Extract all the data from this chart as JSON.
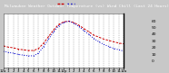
{
  "title": "Milwaukee Weather Outdoor Temperature (vs) Wind Chill (Last 24 Hours)",
  "title_fontsize": 3.2,
  "bg_color": "#c8c8c8",
  "plot_bg_color": "#ffffff",
  "title_bg_color": "#000000",
  "title_fg_color": "#ffffff",
  "hours": [
    0,
    1,
    2,
    3,
    4,
    5,
    6,
    7,
    8,
    9,
    10,
    11,
    12,
    13,
    14,
    15,
    16,
    17,
    18,
    19,
    20,
    21,
    22,
    23,
    24
  ],
  "outdoor_temp": [
    22,
    20,
    19,
    17,
    16,
    15,
    15,
    18,
    26,
    36,
    46,
    54,
    58,
    59,
    57,
    53,
    48,
    43,
    38,
    35,
    32,
    30,
    28,
    26,
    25
  ],
  "wind_chill": [
    14,
    12,
    11,
    9,
    8,
    7,
    7,
    11,
    21,
    32,
    43,
    52,
    57,
    59,
    56,
    51,
    45,
    39,
    33,
    28,
    24,
    21,
    18,
    16,
    14
  ],
  "outdoor_color": "#cc0000",
  "wind_chill_color": "#0000cc",
  "outdoor_lw": 0.7,
  "wind_chill_lw": 0.7,
  "ylim_min": -10,
  "ylim_max": 70,
  "yticks": [
    0,
    10,
    20,
    30,
    40,
    50,
    60
  ],
  "ylabel_fontsize": 3.2,
  "xlabel_fontsize": 2.8,
  "grid_color": "#888888",
  "xtick_labels": [
    "12a",
    "1",
    "2",
    "3",
    "4",
    "5",
    "6",
    "7",
    "8",
    "9",
    "10",
    "11",
    "12p",
    "1",
    "2",
    "3",
    "4",
    "5",
    "6",
    "7",
    "8",
    "9",
    "10",
    "11",
    "12a"
  ]
}
